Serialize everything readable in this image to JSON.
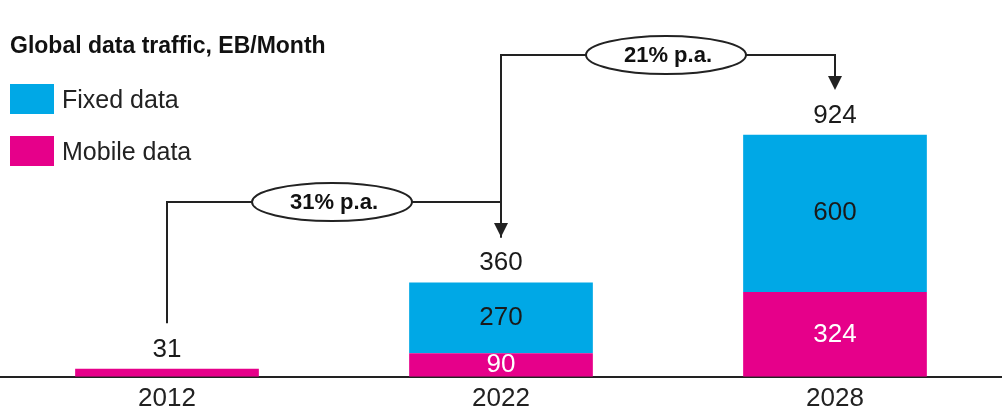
{
  "chart_data": {
    "type": "bar",
    "title": "Global data traffic, EB/Month",
    "categories": [
      "2012",
      "2022",
      "2028"
    ],
    "stacked": true,
    "legend": "top left",
    "grid": false,
    "series": [
      {
        "name": "Mobile data",
        "color": "#e6008a",
        "values": [
          31,
          90,
          324
        ],
        "value_labels": [
          null,
          "90",
          "324"
        ]
      },
      {
        "name": "Fixed data",
        "color": "#00a8e6",
        "values": [
          null,
          270,
          600
        ],
        "value_labels": [
          null,
          "270",
          "600"
        ]
      }
    ],
    "totals": [
      "31",
      "360",
      "924"
    ],
    "annotations": [
      "31% p.a.",
      "21% p.a."
    ]
  }
}
